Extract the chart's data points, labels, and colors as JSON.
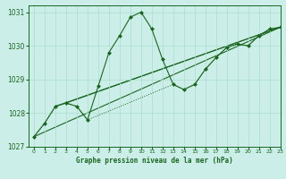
{
  "title": "Graphe pression niveau de la mer (hPa)",
  "bg_color": "#cceee8",
  "grid_color": "#aaddcc",
  "line_color": "#1a6620",
  "xlim": [
    -0.5,
    23
  ],
  "ylim": [
    1027.0,
    1031.2
  ],
  "yticks": [
    1027,
    1028,
    1029,
    1030,
    1031
  ],
  "xticks": [
    0,
    1,
    2,
    3,
    4,
    5,
    6,
    7,
    8,
    9,
    10,
    11,
    12,
    13,
    14,
    15,
    16,
    17,
    18,
    19,
    20,
    21,
    22,
    23
  ],
  "main_x": [
    0,
    1,
    2,
    3,
    4,
    5,
    6,
    7,
    8,
    9,
    10,
    11,
    12,
    13,
    14,
    15,
    16,
    17,
    18,
    19,
    20,
    21,
    22,
    23
  ],
  "main_y": [
    1027.3,
    1027.7,
    1028.2,
    1028.3,
    1028.2,
    1027.8,
    1028.8,
    1029.8,
    1030.3,
    1030.85,
    1031.0,
    1030.5,
    1029.6,
    1028.85,
    1028.7,
    1028.85,
    1029.3,
    1029.65,
    1029.95,
    1030.05,
    1030.0,
    1030.3,
    1030.5,
    1030.55
  ],
  "trend1_x": [
    0,
    23
  ],
  "trend1_y": [
    1027.3,
    1030.55
  ],
  "trend2_x": [
    2,
    23
  ],
  "trend2_y": [
    1028.2,
    1030.55
  ],
  "trend3_x": [
    3,
    23
  ],
  "trend3_y": [
    1028.3,
    1030.55
  ],
  "dot_x": [
    0,
    1,
    2,
    3,
    4,
    5,
    13,
    14,
    15,
    16,
    17,
    18,
    19,
    20,
    21,
    22,
    23
  ],
  "dot_y": [
    1027.3,
    1027.7,
    1028.2,
    1028.3,
    1028.2,
    1027.8,
    1028.85,
    1028.7,
    1028.85,
    1029.3,
    1029.65,
    1029.95,
    1030.05,
    1030.0,
    1030.3,
    1030.5,
    1030.55
  ],
  "marker_size": 2.5
}
